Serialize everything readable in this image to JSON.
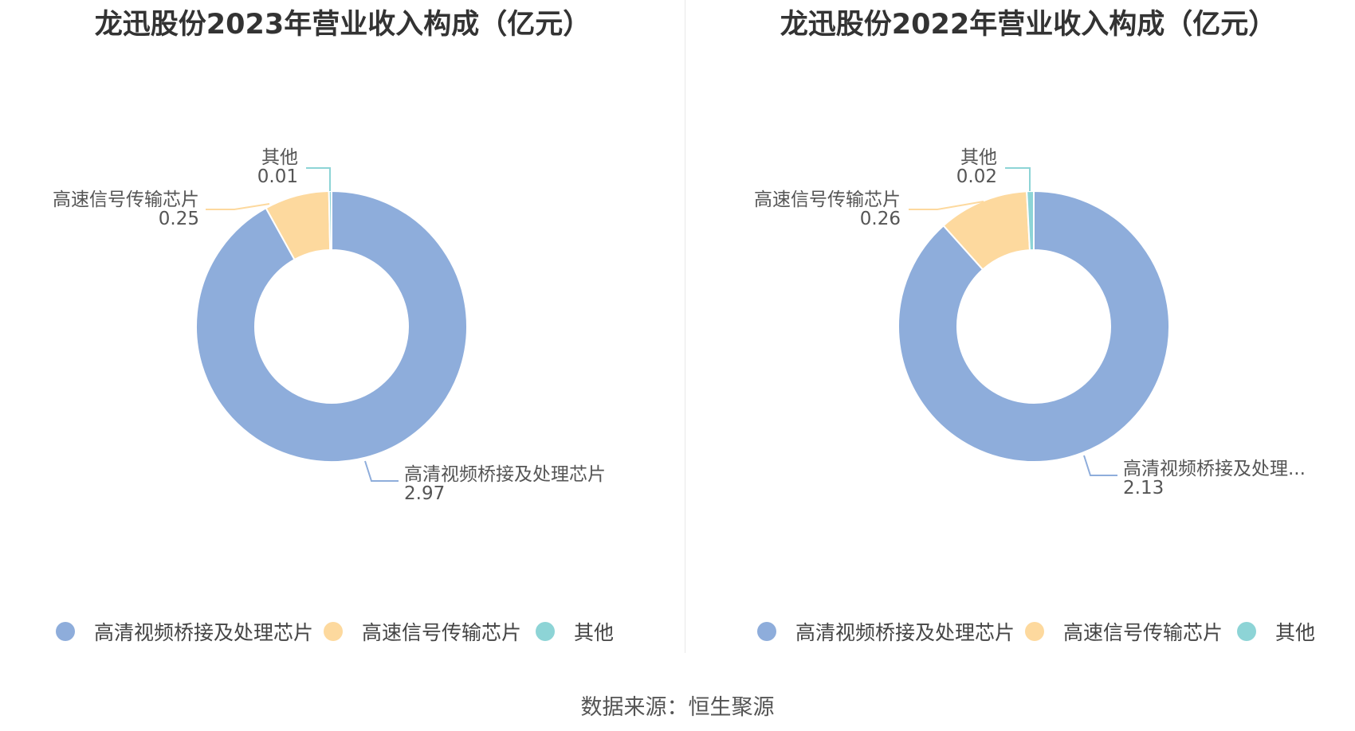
{
  "source": "数据来源：恒生聚源",
  "colors": {
    "hd": "#8eaddb",
    "hs": "#fdd99e",
    "other": "#8dd4d6"
  },
  "chart_data": [
    {
      "type": "pie",
      "title": "龙迅股份2023年营业收入构成（亿元）",
      "categories": [
        "高清视频桥接及处理芯片",
        "高速信号传输芯片",
        "其他"
      ],
      "values": [
        2.97,
        0.25,
        0.01
      ],
      "labels": [
        "高清视频桥接及处理芯片",
        "高速信号传输芯片",
        "其他"
      ],
      "value_labels": [
        "2.97",
        "0.25",
        "0.01"
      ],
      "legend": [
        "高清视频桥接及处理芯片",
        "高速信号传输芯片",
        "其他"
      ],
      "legend_position": "bottom"
    },
    {
      "type": "pie",
      "title": "龙迅股份2022年营业收入构成（亿元）",
      "categories": [
        "高清视频桥接及处理芯片",
        "高速信号传输芯片",
        "其他"
      ],
      "values": [
        2.13,
        0.26,
        0.02
      ],
      "labels": [
        "高清视频桥接及处理...",
        "高速信号传输芯片",
        "其他"
      ],
      "value_labels": [
        "2.13",
        "0.26",
        "0.02"
      ],
      "legend": [
        "高清视频桥接及处理芯片",
        "高速信号传输芯片",
        "其他"
      ],
      "legend_position": "bottom"
    }
  ]
}
